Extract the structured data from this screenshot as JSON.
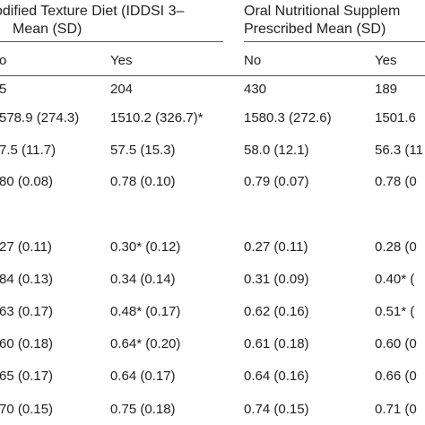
{
  "header": {
    "group1_line1": "odified Texture Diet (IDDSI 3–",
    "group1_line2": "Mean (SD)",
    "group2_line1": "Oral Nutritional Supplem",
    "group2_line2": "Prescribed Mean (SD)"
  },
  "subheaders": [
    "o",
    "Yes",
    "No",
    "Yes"
  ],
  "rows": [
    [
      "5",
      "204",
      "430",
      "189"
    ],
    [
      "578.9 (274.3)",
      "1510.2 (326.7)*",
      "1580.3 (272.6)",
      "1501.6"
    ],
    [
      "7.5 (11.7)",
      "57.5 (15.3)",
      "58.0 (12.1)",
      "56.3 (11"
    ],
    [
      "80 (0.08)",
      "0.78 (0.10)",
      "0.79 (0.07)",
      "0.78 (0"
    ],
    [
      "",
      "",
      "",
      ""
    ],
    [
      "27 (0.11)",
      "0.30* (0.12)",
      "0.27 (0.11)",
      "0.28 (0"
    ],
    [
      "84 (0.13)",
      "0.34 (0.14)",
      "0.31 (0.09)",
      "0.40* ("
    ],
    [
      "63 (0.17)",
      "0.48* (0.17)",
      "0.62 (0.16)",
      "0.51* ("
    ],
    [
      "60 (0.18)",
      "0.64* (0.20)",
      "0.61 (0.18)",
      "0.60 (0"
    ],
    [
      "65 (0.17)",
      "0.64 (0.17)",
      "0.64 (0.16)",
      "0.66 (0"
    ],
    [
      "70 (0.15)",
      "0.75 (0.18)",
      "0.74 (0.15)",
      "0.71 (0"
    ]
  ]
}
